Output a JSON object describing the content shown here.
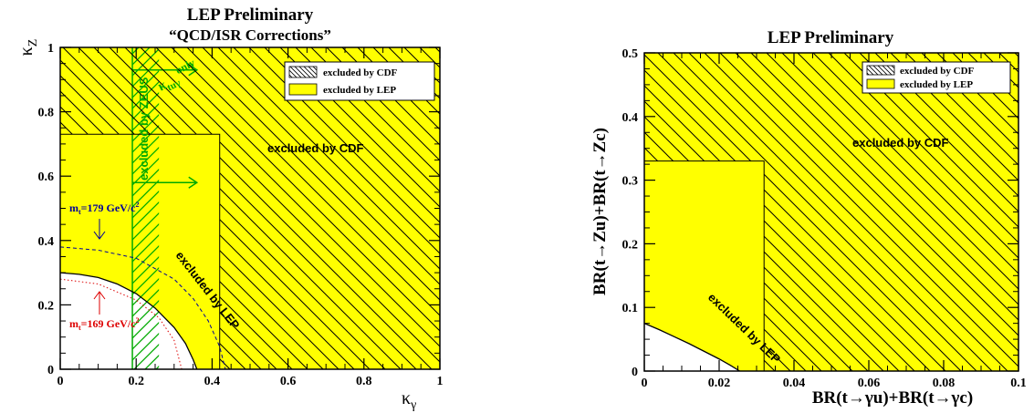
{
  "colors": {
    "lep_fill": "#ffff00",
    "axes": "#000000",
    "hatch": "#000000",
    "zeus": "#00aa00",
    "mt179": "#000099",
    "mt169": "#dd0000"
  },
  "chart_data": [
    {
      "type": "area",
      "title": "LEP Preliminary",
      "subtitle": "“QCD/ISR Corrections”",
      "xlabel": "κ",
      "xlabel_sub": "γ",
      "ylabel": "κ",
      "ylabel_sub": "Z",
      "xlim": [
        0,
        1
      ],
      "ylim": [
        0,
        1
      ],
      "xticks": [
        0,
        0.2,
        0.4,
        0.6,
        0.8,
        1
      ],
      "yticks": [
        0,
        0.2,
        0.4,
        0.6,
        0.8,
        1
      ],
      "xtick_labels": [
        "0",
        "0.2",
        "0.4",
        "0.6",
        "0.8",
        "1"
      ],
      "ytick_labels": [
        "0",
        "0.2",
        "0.4",
        "0.6",
        "0.8",
        "1"
      ],
      "legend": {
        "placement": "top-right",
        "entries": [
          {
            "label": "excluded by CDF",
            "style": "hatch"
          },
          {
            "label": "excluded by LEP",
            "style": "fill"
          }
        ]
      },
      "cdf_boundary": {
        "x": 0.42,
        "y": 0.73
      },
      "lep_allowed_curve": {
        "x": [
          0,
          0.05,
          0.1,
          0.15,
          0.2,
          0.25,
          0.3,
          0.33,
          0.35,
          0.36
        ],
        "y": [
          0.3,
          0.295,
          0.285,
          0.265,
          0.235,
          0.19,
          0.13,
          0.08,
          0.03,
          0
        ]
      },
      "mt179_curve": {
        "x": [
          0,
          0.1,
          0.2,
          0.3,
          0.35,
          0.39,
          0.42,
          0.435
        ],
        "y": [
          0.38,
          0.37,
          0.345,
          0.28,
          0.22,
          0.15,
          0.07,
          0
        ]
      },
      "mt169_curve": {
        "x": [
          0,
          0.1,
          0.2,
          0.26,
          0.3,
          0.32
        ],
        "y": [
          0.28,
          0.265,
          0.215,
          0.16,
          0.09,
          0
        ]
      },
      "zeus_band": {
        "x0": 0.19,
        "x1": 0.26
      },
      "zeus_arrows_y": [
        0.58,
        0.93
      ],
      "annotations": {
        "cdf": "excluded by CDF",
        "lep": "excluded by LEP",
        "zeus": "excluded by ZEUS",
        "ktzu_main": "κ",
        "ktzu_sub": "tuγ",
        "ktzu_only": "only",
        "mt179_main": "m",
        "mt179_sub": "t",
        "mt179_value": "=179 GeV/c",
        "mt179_sup": "2",
        "mt169_main": "m",
        "mt169_sub": "t",
        "mt169_value": "=169 GeV/c",
        "mt169_sup": "2"
      }
    },
    {
      "type": "area",
      "title": "LEP Preliminary",
      "xlabel": "BR(t→γu)+BR(t→γc)",
      "ylabel": "BR(t→Zu)+BR(t→Zc)",
      "xlim": [
        0,
        0.1
      ],
      "ylim": [
        0,
        0.5
      ],
      "xticks": [
        0,
        0.02,
        0.04,
        0.06,
        0.08,
        0.1
      ],
      "yticks": [
        0,
        0.1,
        0.2,
        0.3,
        0.4,
        0.5
      ],
      "xtick_labels": [
        "0",
        "0.02",
        "0.04",
        "0.06",
        "0.08",
        "0.1"
      ],
      "ytick_labels": [
        "0",
        "0.1",
        "0.2",
        "0.3",
        "0.4",
        "0.5"
      ],
      "legend": {
        "placement": "top-right",
        "entries": [
          {
            "label": "excluded by CDF",
            "style": "hatch"
          },
          {
            "label": "excluded by LEP",
            "style": "fill"
          }
        ]
      },
      "cdf_boundary": {
        "x": 0.032,
        "y": 0.33
      },
      "lep_allowed_curve": {
        "x": [
          0,
          0.004,
          0.008,
          0.012,
          0.016,
          0.02,
          0.023,
          0.0255
        ],
        "y": [
          0.075,
          0.065,
          0.054,
          0.043,
          0.031,
          0.019,
          0.009,
          0
        ]
      },
      "annotations": {
        "cdf": "excluded by CDF",
        "lep": "excluded by LEP"
      }
    }
  ]
}
